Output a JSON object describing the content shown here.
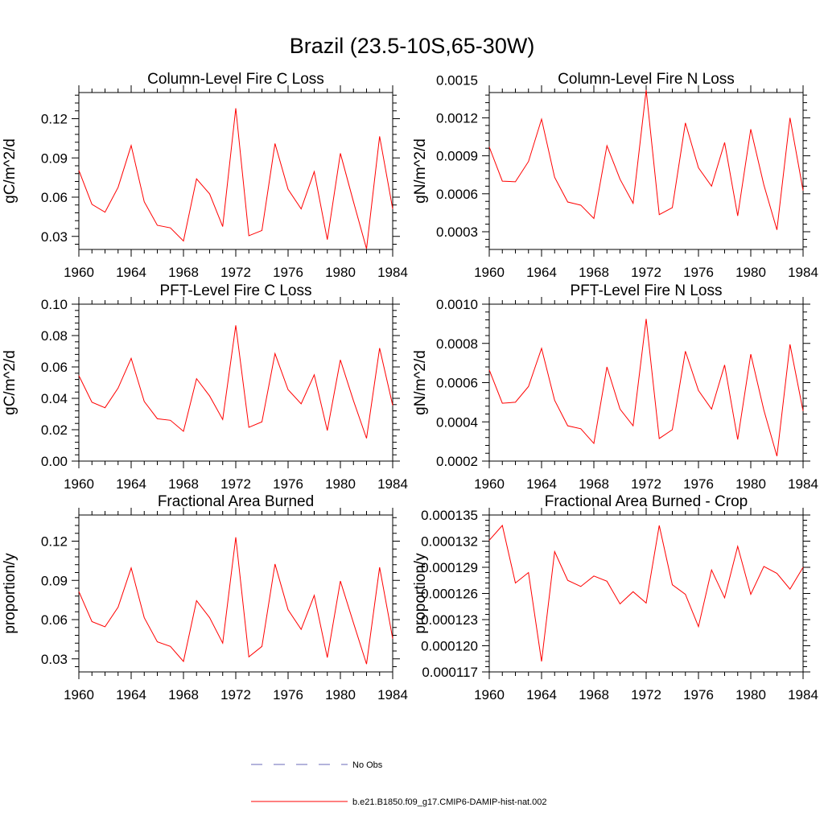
{
  "title": "Brazil (23.5-10S,65-30W)",
  "chart_data": [
    {
      "type": "line",
      "title": "Column-Level Fire C Loss",
      "ylabel": "gC/m^2/d",
      "xlim": [
        1960,
        1984
      ],
      "ylim": [
        0.02,
        0.14
      ],
      "x_ticks": [
        "1960",
        "1964",
        "1968",
        "1972",
        "1976",
        "1980",
        "1984"
      ],
      "y_ticks": [
        "0.03",
        "0.06",
        "0.09",
        "0.12"
      ],
      "x": [
        1960,
        1961,
        1962,
        1963,
        1964,
        1965,
        1966,
        1967,
        1968,
        1969,
        1970,
        1971,
        1972,
        1973,
        1974,
        1975,
        1976,
        1977,
        1978,
        1979,
        1980,
        1981,
        1982,
        1983,
        1984
      ],
      "series": [
        {
          "name": "b.e21.B1850.f09_g17.CMIP6-DAMIP-hist-nat.002",
          "values": [
            0.0805,
            0.0545,
            0.0485,
            0.0675,
            0.0995,
            0.0565,
            0.0385,
            0.0365,
            0.0265,
            0.074,
            0.0625,
            0.0375,
            0.128,
            0.0305,
            0.0345,
            0.101,
            0.066,
            0.051,
            0.0795,
            0.0275,
            0.0935,
            0.0565,
            0.0205,
            0.1065,
            0.051
          ]
        }
      ]
    },
    {
      "type": "line",
      "title": "Column-Level Fire N Loss",
      "ylabel": "gN/m^2/d",
      "xlim": [
        1960,
        1984
      ],
      "ylim": [
        0.00016,
        0.0014
      ],
      "x_ticks": [
        "1960",
        "1964",
        "1968",
        "1972",
        "1976",
        "1980",
        "1984"
      ],
      "y_ticks": [
        "0.0003",
        "0.0006",
        "0.0009",
        "0.0012",
        "0.0015"
      ],
      "x": [
        1960,
        1961,
        1962,
        1963,
        1964,
        1965,
        1966,
        1967,
        1968,
        1969,
        1970,
        1971,
        1972,
        1973,
        1974,
        1975,
        1976,
        1977,
        1978,
        1979,
        1980,
        1981,
        1982,
        1983,
        1984
      ],
      "series": [
        {
          "name": "b.e21.B1850.f09_g17.CMIP6-DAMIP-hist-nat.002",
          "values": [
            0.00097,
            0.0007,
            0.000695,
            0.000855,
            0.00119,
            0.00073,
            0.000535,
            0.00051,
            0.000405,
            0.00098,
            0.000715,
            0.000525,
            0.00142,
            0.000435,
            0.00049,
            0.00116,
            0.000805,
            0.00066,
            0.001005,
            0.000425,
            0.00111,
            0.00067,
            0.000315,
            0.0012,
            0.000625
          ]
        }
      ]
    },
    {
      "type": "line",
      "title": "PFT-Level Fire C Loss",
      "ylabel": "gC/m^2/d",
      "xlim": [
        1960,
        1984
      ],
      "ylim": [
        0,
        0.1
      ],
      "x_ticks": [
        "1960",
        "1964",
        "1968",
        "1972",
        "1976",
        "1980",
        "1984"
      ],
      "y_ticks": [
        "0.00",
        "0.02",
        "0.04",
        "0.06",
        "0.08",
        "0.10"
      ],
      "x": [
        1960,
        1961,
        1962,
        1963,
        1964,
        1965,
        1966,
        1967,
        1968,
        1969,
        1970,
        1971,
        1972,
        1973,
        1974,
        1975,
        1976,
        1977,
        1978,
        1979,
        1980,
        1981,
        1982,
        1983,
        1984
      ],
      "series": [
        {
          "name": "b.e21.B1850.f09_g17.CMIP6-DAMIP-hist-nat.002",
          "values": [
            0.0545,
            0.0375,
            0.034,
            0.0465,
            0.0655,
            0.038,
            0.027,
            0.026,
            0.019,
            0.0525,
            0.0415,
            0.0265,
            0.0865,
            0.0215,
            0.025,
            0.0685,
            0.0455,
            0.0365,
            0.055,
            0.0195,
            0.0645,
            0.0385,
            0.0145,
            0.072,
            0.0355
          ]
        }
      ]
    },
    {
      "type": "line",
      "title": "PFT-Level Fire N Loss",
      "ylabel": "gN/m^2/d",
      "xlim": [
        1960,
        1984
      ],
      "ylim": [
        0.0002,
        0.001
      ],
      "x_ticks": [
        "1960",
        "1964",
        "1968",
        "1972",
        "1976",
        "1980",
        "1984"
      ],
      "y_ticks": [
        "0.0002",
        "0.0004",
        "0.0006",
        "0.0008",
        "0.0010"
      ],
      "x": [
        1960,
        1961,
        1962,
        1963,
        1964,
        1965,
        1966,
        1967,
        1968,
        1969,
        1970,
        1971,
        1972,
        1973,
        1974,
        1975,
        1976,
        1977,
        1978,
        1979,
        1980,
        1981,
        1982,
        1983,
        1984
      ],
      "series": [
        {
          "name": "b.e21.B1850.f09_g17.CMIP6-DAMIP-hist-nat.002",
          "values": [
            0.000665,
            0.000495,
            0.0005,
            0.00058,
            0.000775,
            0.00051,
            0.00038,
            0.000365,
            0.00029,
            0.00068,
            0.000465,
            0.00038,
            0.000925,
            0.000315,
            0.00036,
            0.00076,
            0.00056,
            0.000465,
            0.00069,
            0.00031,
            0.000745,
            0.00046,
            0.000225,
            0.000795,
            0.000455
          ]
        }
      ]
    },
    {
      "type": "line",
      "title": "Fractional Area Burned",
      "ylabel": "proportion/y",
      "xlim": [
        1960,
        1984
      ],
      "ylim": [
        0.02,
        0.14
      ],
      "x_ticks": [
        "1960",
        "1964",
        "1968",
        "1972",
        "1976",
        "1980",
        "1984"
      ],
      "y_ticks": [
        "0.03",
        "0.06",
        "0.09",
        "0.12"
      ],
      "x": [
        1960,
        1961,
        1962,
        1963,
        1964,
        1965,
        1966,
        1967,
        1968,
        1969,
        1970,
        1971,
        1972,
        1973,
        1974,
        1975,
        1976,
        1977,
        1978,
        1979,
        1980,
        1981,
        1982,
        1983,
        1984
      ],
      "series": [
        {
          "name": "b.e21.B1850.f09_g17.CMIP6-DAMIP-hist-nat.002",
          "values": [
            0.0815,
            0.0585,
            0.0545,
            0.0695,
            0.0995,
            0.0615,
            0.043,
            0.0395,
            0.028,
            0.0745,
            0.0615,
            0.042,
            0.123,
            0.0315,
            0.0395,
            0.1025,
            0.0675,
            0.0525,
            0.0785,
            0.031,
            0.0895,
            0.0575,
            0.026,
            0.1,
            0.0455
          ]
        }
      ]
    },
    {
      "type": "line",
      "title": "Fractional Area Burned - Crop",
      "ylabel": "proportion/y",
      "xlim": [
        1960,
        1984
      ],
      "ylim": [
        0.000117,
        0.000135
      ],
      "x_ticks": [
        "1960",
        "1964",
        "1968",
        "1972",
        "1976",
        "1980",
        "1984"
      ],
      "y_ticks": [
        "0.000117",
        "0.000120",
        "0.000123",
        "0.000126",
        "0.000129",
        "0.000132",
        "0.000135"
      ],
      "x": [
        1960,
        1961,
        1962,
        1963,
        1964,
        1965,
        1966,
        1967,
        1968,
        1969,
        1970,
        1971,
        1972,
        1973,
        1974,
        1975,
        1976,
        1977,
        1978,
        1979,
        1980,
        1981,
        1982,
        1983,
        1984
      ],
      "series": [
        {
          "name": "b.e21.B1850.f09_g17.CMIP6-DAMIP-hist-nat.002",
          "values": [
            0.0001321,
            0.0001338,
            0.0001272,
            0.0001284,
            0.0001182,
            0.0001308,
            0.0001275,
            0.0001268,
            0.000128,
            0.0001274,
            0.0001248,
            0.0001262,
            0.0001249,
            0.0001338,
            0.000127,
            0.0001259,
            0.0001222,
            0.0001287,
            0.0001255,
            0.0001314,
            0.0001259,
            0.0001291,
            0.0001283,
            0.0001265,
            0.000129
          ]
        }
      ]
    }
  ],
  "legend": [
    {
      "label": "No Obs",
      "color": "#6a6ab8",
      "dash": true
    },
    {
      "label": "b.e21.B1850.f09_g17.CMIP6-DAMIP-hist-nat.002",
      "color": "#ff0000",
      "dash": false
    }
  ],
  "colors": {
    "series": "#ff0000",
    "axes": "#000000",
    "background": "#ffffff"
  }
}
